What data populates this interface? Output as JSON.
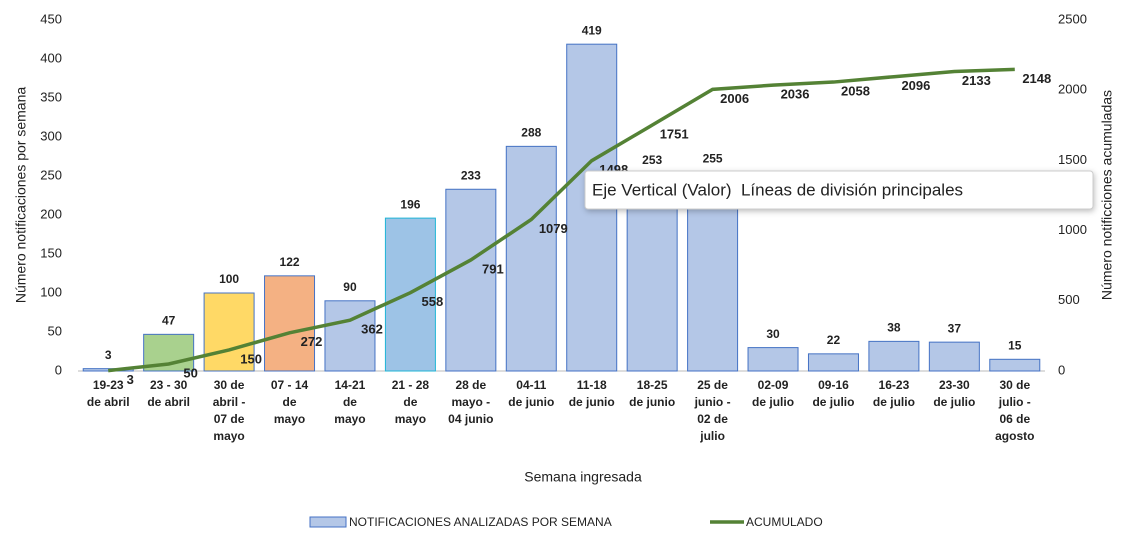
{
  "chart_data": {
    "type": "bar-line",
    "categories": [
      [
        "19-23",
        "de abril"
      ],
      [
        "23 - 30",
        "de abril"
      ],
      [
        "30 de",
        "abril -",
        "07 de",
        "mayo"
      ],
      [
        "07 - 14",
        "de",
        "mayo"
      ],
      [
        "14-21",
        "de",
        "mayo"
      ],
      [
        "21 - 28",
        "de",
        "mayo"
      ],
      [
        "28 de",
        "mayo -",
        "04 junio"
      ],
      [
        "04-11",
        "de junio"
      ],
      [
        "11-18",
        "de junio"
      ],
      [
        "18-25",
        "de junio"
      ],
      [
        "25 de",
        "junio -",
        "02 de",
        "julio"
      ],
      [
        "02-09",
        "de julio"
      ],
      [
        "09-16",
        "de julio"
      ],
      [
        "16-23",
        "de julio"
      ],
      [
        "23-30",
        "de julio"
      ],
      [
        "30 de",
        "julio -",
        "06 de",
        "agosto"
      ]
    ],
    "series": [
      {
        "name": "NOTIFICACIONES ANALIZADAS POR SEMANA",
        "color": "#b4c7e7",
        "colors": [
          "#b4c7e7",
          "#a9d18e",
          "#ffd966",
          "#f4b183",
          "#b4c7e7",
          "#9dc3e6",
          "#b4c7e7",
          "#b4c7e7",
          "#b4c7e7",
          "#b4c7e7",
          "#b4c7e7",
          "#b4c7e7",
          "#b4c7e7",
          "#b4c7e7",
          "#b4c7e7",
          "#b4c7e7"
        ],
        "values": [
          3,
          47,
          100,
          122,
          90,
          196,
          233,
          288,
          419,
          253,
          255,
          30,
          22,
          38,
          37,
          15
        ]
      },
      {
        "name": "ACUMULADO",
        "color": "#548235",
        "axis": "y2",
        "values": [
          3,
          50,
          150,
          272,
          362,
          558,
          791,
          1079,
          1498,
          1751,
          2006,
          2036,
          2058,
          2096,
          2133,
          2148
        ]
      }
    ],
    "ylim": [
      0,
      450
    ],
    "yticks": [
      0,
      50,
      100,
      150,
      200,
      250,
      300,
      350,
      400,
      450
    ],
    "y2lim": [
      0,
      2500
    ],
    "y2ticks": [
      0,
      500,
      1000,
      1500,
      2000,
      2500
    ],
    "ylabel": "Número notificaciones por semana",
    "y2label": "Número notificciones acumuladas",
    "xlabel": "Semana ingresada",
    "grid": false,
    "tooltip": "Eje Vertical (Valor)  Líneas de división principales"
  }
}
